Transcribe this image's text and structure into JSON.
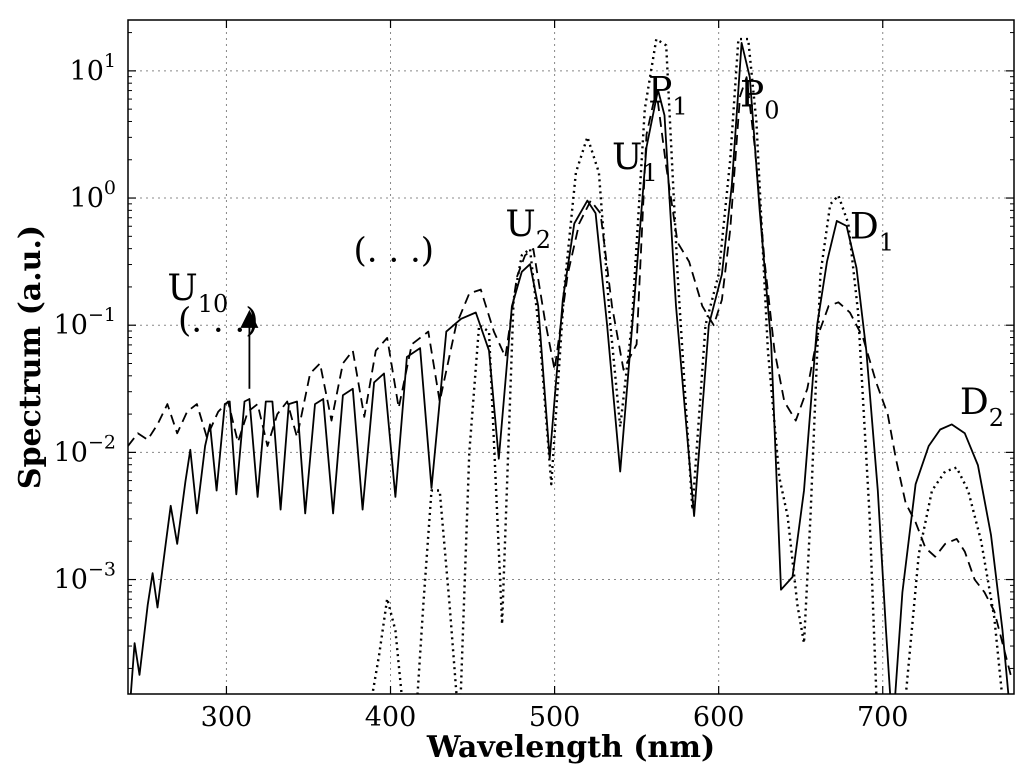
{
  "chart_data": {
    "type": "line",
    "title": "",
    "xlabel": "Wavelength (nm)",
    "ylabel": "Spectrum (a.u.)",
    "xlim": [
      240,
      780
    ],
    "ylim_log10": [
      -3.9,
      1.4
    ],
    "y_scale": "log",
    "grid": true,
    "x_ticks": [
      {
        "value": 300,
        "label": "300"
      },
      {
        "value": 400,
        "label": "400"
      },
      {
        "value": 500,
        "label": "500"
      },
      {
        "value": 600,
        "label": "600"
      },
      {
        "value": 700,
        "label": "700"
      }
    ],
    "y_ticks": [
      {
        "value": -3,
        "base": "10",
        "exp": "−3"
      },
      {
        "value": -2,
        "base": "10",
        "exp": "−2"
      },
      {
        "value": -1,
        "base": "10",
        "exp": "−1"
      },
      {
        "value": 0,
        "base": "10",
        "exp": "0"
      },
      {
        "value": 1,
        "base": "10",
        "exp": "1"
      }
    ],
    "series": [
      {
        "name": "solid",
        "style": "solid",
        "points": [
          [
            240,
            -4.2
          ],
          [
            244,
            -3.5
          ],
          [
            247,
            -3.75
          ],
          [
            252,
            -3.2
          ],
          [
            255,
            -2.95
          ],
          [
            258,
            -3.22
          ],
          [
            263,
            -2.72
          ],
          [
            266,
            -2.42
          ],
          [
            270,
            -2.72
          ],
          [
            275,
            -2.23
          ],
          [
            278,
            -1.98
          ],
          [
            282,
            -2.48
          ],
          [
            287,
            -1.95
          ],
          [
            290,
            -1.78
          ],
          [
            294,
            -2.3
          ],
          [
            299,
            -1.62
          ],
          [
            302,
            -1.6
          ],
          [
            306,
            -2.33
          ],
          [
            311,
            -1.6
          ],
          [
            314,
            -1.58
          ],
          [
            319,
            -2.35
          ],
          [
            324,
            -1.6
          ],
          [
            328,
            -1.6
          ],
          [
            333,
            -2.45
          ],
          [
            338,
            -1.62
          ],
          [
            343,
            -1.6
          ],
          [
            348,
            -2.48
          ],
          [
            354,
            -1.62
          ],
          [
            359,
            -1.58
          ],
          [
            365,
            -2.48
          ],
          [
            371,
            -1.55
          ],
          [
            377,
            -1.5
          ],
          [
            383,
            -2.45
          ],
          [
            390,
            -1.45
          ],
          [
            396,
            -1.38
          ],
          [
            403,
            -2.35
          ],
          [
            410,
            -1.25
          ],
          [
            418,
            -1.18
          ],
          [
            425,
            -2.28
          ],
          [
            434,
            -1.05
          ],
          [
            443,
            -0.95
          ],
          [
            452,
            -0.9
          ],
          [
            460,
            -1.2
          ],
          [
            466,
            -2.05
          ],
          [
            474,
            -0.85
          ],
          [
            480,
            -0.58
          ],
          [
            485,
            -0.52
          ],
          [
            490,
            -0.85
          ],
          [
            497,
            -2.05
          ],
          [
            505,
            -0.8
          ],
          [
            512,
            -0.2
          ],
          [
            520,
            -0.02
          ],
          [
            525,
            -0.12
          ],
          [
            532,
            -1.0
          ],
          [
            540,
            -2.15
          ],
          [
            548,
            -0.9
          ],
          [
            556,
            0.4
          ],
          [
            563,
            0.85
          ],
          [
            567,
            0.65
          ],
          [
            574,
            -0.85
          ],
          [
            585,
            -2.5
          ],
          [
            594,
            -1.0
          ],
          [
            602,
            -0.6
          ],
          [
            608,
            0.1
          ],
          [
            614,
            1.22
          ],
          [
            619,
            0.95
          ],
          [
            625,
            -0.1
          ],
          [
            632,
            -1.15
          ],
          [
            638,
            -3.08
          ],
          [
            645,
            -2.98
          ],
          [
            652,
            -2.3
          ],
          [
            660,
            -1.0
          ],
          [
            666,
            -0.5
          ],
          [
            672,
            -0.18
          ],
          [
            678,
            -0.22
          ],
          [
            684,
            -0.55
          ],
          [
            690,
            -1.2
          ],
          [
            697,
            -2.3
          ],
          [
            702,
            -3.4
          ],
          [
            706,
            -4.2
          ],
          [
            712,
            -3.1
          ],
          [
            720,
            -2.25
          ],
          [
            728,
            -1.95
          ],
          [
            735,
            -1.82
          ],
          [
            742,
            -1.78
          ],
          [
            750,
            -1.85
          ],
          [
            758,
            -2.1
          ],
          [
            766,
            -2.65
          ],
          [
            773,
            -3.4
          ],
          [
            778,
            -4.1
          ]
        ]
      },
      {
        "name": "dashed",
        "style": "dashed",
        "points": [
          [
            240,
            -1.95
          ],
          [
            246,
            -1.85
          ],
          [
            252,
            -1.9
          ],
          [
            258,
            -1.78
          ],
          [
            264,
            -1.62
          ],
          [
            270,
            -1.85
          ],
          [
            276,
            -1.68
          ],
          [
            282,
            -1.62
          ],
          [
            288,
            -1.88
          ],
          [
            295,
            -1.68
          ],
          [
            301,
            -1.6
          ],
          [
            307,
            -1.92
          ],
          [
            313,
            -1.68
          ],
          [
            319,
            -1.62
          ],
          [
            325,
            -1.95
          ],
          [
            331,
            -1.7
          ],
          [
            337,
            -1.6
          ],
          [
            343,
            -1.88
          ],
          [
            351,
            -1.38
          ],
          [
            357,
            -1.3
          ],
          [
            364,
            -1.75
          ],
          [
            371,
            -1.3
          ],
          [
            377,
            -1.2
          ],
          [
            384,
            -1.72
          ],
          [
            391,
            -1.2
          ],
          [
            398,
            -1.1
          ],
          [
            405,
            -1.65
          ],
          [
            413,
            -1.15
          ],
          [
            423,
            -1.05
          ],
          [
            430,
            -1.6
          ],
          [
            440,
            -1.0
          ],
          [
            448,
            -0.75
          ],
          [
            455,
            -0.72
          ],
          [
            463,
            -1.05
          ],
          [
            470,
            -1.25
          ],
          [
            477,
            -0.62
          ],
          [
            482,
            -0.45
          ],
          [
            487,
            -0.4
          ],
          [
            494,
            -0.95
          ],
          [
            500,
            -1.35
          ],
          [
            508,
            -0.6
          ],
          [
            515,
            -0.2
          ],
          [
            522,
            -0.02
          ],
          [
            528,
            -0.12
          ],
          [
            535,
            -0.85
          ],
          [
            542,
            -1.35
          ],
          [
            550,
            -1.15
          ],
          [
            556,
            0.5
          ],
          [
            562,
            0.85
          ],
          [
            568,
            0.25
          ],
          [
            575,
            -0.35
          ],
          [
            582,
            -0.5
          ],
          [
            590,
            -0.85
          ],
          [
            597,
            -1.0
          ],
          [
            602,
            -0.8
          ],
          [
            607,
            -0.25
          ],
          [
            613,
            0.8
          ],
          [
            617,
            0.95
          ],
          [
            622,
            0.4
          ],
          [
            628,
            -0.5
          ],
          [
            634,
            -1.2
          ],
          [
            640,
            -1.6
          ],
          [
            647,
            -1.75
          ],
          [
            654,
            -1.5
          ],
          [
            660,
            -1.1
          ],
          [
            667,
            -0.85
          ],
          [
            673,
            -0.82
          ],
          [
            680,
            -0.9
          ],
          [
            688,
            -1.1
          ],
          [
            696,
            -1.45
          ],
          [
            703,
            -1.7
          ],
          [
            708,
            -2.05
          ],
          [
            714,
            -2.4
          ],
          [
            720,
            -2.55
          ],
          [
            726,
            -2.75
          ],
          [
            732,
            -2.82
          ],
          [
            738,
            -2.72
          ],
          [
            745,
            -2.68
          ],
          [
            750,
            -2.78
          ],
          [
            756,
            -3.0
          ],
          [
            762,
            -3.1
          ],
          [
            768,
            -3.25
          ],
          [
            773,
            -3.5
          ],
          [
            778,
            -3.75
          ]
        ]
      },
      {
        "name": "dotted",
        "style": "dotted",
        "points": [
          [
            385,
            -4.2
          ],
          [
            393,
            -3.6
          ],
          [
            398,
            -3.15
          ],
          [
            403,
            -3.4
          ],
          [
            409,
            -4.2
          ],
          [
            415,
            -4.2
          ],
          [
            420,
            -3.2
          ],
          [
            425,
            -2.3
          ],
          [
            430,
            -2.3
          ],
          [
            436,
            -3.2
          ],
          [
            442,
            -4.2
          ],
          [
            448,
            -2.0
          ],
          [
            454,
            -1.0
          ],
          [
            460,
            -1.05
          ],
          [
            468,
            -3.35
          ],
          [
            475,
            -0.8
          ],
          [
            480,
            -0.45
          ],
          [
            485,
            -0.4
          ],
          [
            491,
            -1.1
          ],
          [
            498,
            -2.25
          ],
          [
            506,
            -0.7
          ],
          [
            513,
            0.2
          ],
          [
            520,
            0.48
          ],
          [
            527,
            0.2
          ],
          [
            534,
            -1.0
          ],
          [
            540,
            -1.8
          ],
          [
            547,
            -1.0
          ],
          [
            555,
            0.7
          ],
          [
            562,
            1.25
          ],
          [
            568,
            1.2
          ],
          [
            575,
            -0.6
          ],
          [
            584,
            -2.45
          ],
          [
            592,
            -1.0
          ],
          [
            600,
            -0.6
          ],
          [
            607,
            0.3
          ],
          [
            612,
            1.25
          ],
          [
            618,
            1.25
          ],
          [
            623,
            0.6
          ],
          [
            630,
            -1.2
          ],
          [
            637,
            -2.2
          ],
          [
            642,
            -2.5
          ],
          [
            648,
            -3.2
          ],
          [
            652,
            -3.5
          ],
          [
            656,
            -2.5
          ],
          [
            662,
            -0.6
          ],
          [
            668,
            -0.05
          ],
          [
            673,
            0.02
          ],
          [
            679,
            -0.2
          ],
          [
            685,
            -0.9
          ],
          [
            692,
            -2.5
          ],
          [
            697,
            -4.2
          ],
          [
            712,
            -4.2
          ],
          [
            722,
            -2.8
          ],
          [
            730,
            -2.3
          ],
          [
            738,
            -2.15
          ],
          [
            745,
            -2.12
          ],
          [
            752,
            -2.3
          ],
          [
            760,
            -2.7
          ],
          [
            768,
            -3.3
          ],
          [
            775,
            -4.2
          ]
        ]
      }
    ],
    "annotations": [
      {
        "text": "P",
        "sub": "0",
        "x": 613,
        "y": 0.72
      },
      {
        "text": "P",
        "sub": "1",
        "x": 557,
        "y": 0.75
      },
      {
        "text": "U",
        "sub": "1",
        "x": 535,
        "y": 0.23
      },
      {
        "text": "U",
        "sub": "2",
        "x": 470,
        "y": -0.3
      },
      {
        "text": "D",
        "sub": "1",
        "x": 680,
        "y": -0.32
      },
      {
        "text": "D",
        "sub": "2",
        "x": 747,
        "y": -1.7
      },
      {
        "text": "U",
        "sub": "10",
        "x": 264,
        "y": -0.8
      },
      {
        "text": "(. . .)",
        "sub": "",
        "x": 295,
        "y": -1.05
      },
      {
        "text": "(. . .)",
        "sub": "",
        "x": 402,
        "y": -0.5
      }
    ],
    "arrow": {
      "x": 314,
      "y_from_log10": -1.5,
      "y_to_log10": -0.95
    }
  }
}
